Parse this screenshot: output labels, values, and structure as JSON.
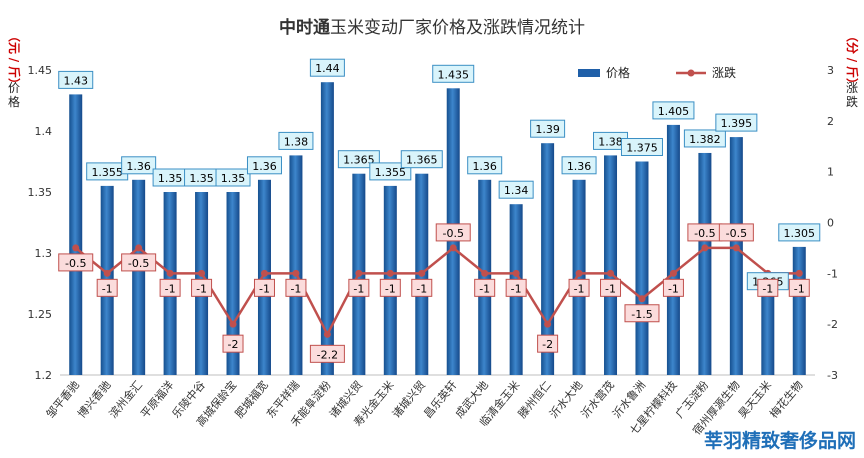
{
  "chart_data": {
    "type": "bar",
    "title_prefix": "中时通",
    "title_rest": "玉米变动厂家价格及涨跌情况统计",
    "ylabel_left": "价格",
    "ylabel_left_unit": "（元/斤）",
    "ylabel_right": "涨跌",
    "ylabel_right_unit": "（分/斤）",
    "ylim_left": [
      1.2,
      1.45
    ],
    "ylim_right": [
      -3,
      3
    ],
    "yticks_left": [
      "1.2",
      "1.25",
      "1.3",
      "1.35",
      "1.4",
      "1.45"
    ],
    "yticks_right": [
      "-3",
      "-2",
      "-1",
      "0",
      "1",
      "2",
      "3"
    ],
    "grid": false,
    "legend_position": "top-right",
    "categories": [
      "邹平香驰",
      "博兴香驰",
      "滨州金汇",
      "平原福洋",
      "乐陵中谷",
      "高城保龄宝",
      "肥城福宽",
      "东平祥瑞",
      "禾能阜淀粉",
      "诸城兴贸",
      "寿光金玉米",
      "诸城兴贸",
      "昌乐英轩",
      "成武大地",
      "临清金玉米",
      "滕州恒仁",
      "沂水大地",
      "沂水营茂",
      "沂水鲁洲",
      "七星柠檬科技",
      "广玉淀粉",
      "宿州厚源生物",
      "昊天玉米",
      "梅花生物"
    ],
    "series": [
      {
        "name": "价格",
        "type": "bar",
        "values": [
          1.43,
          1.355,
          1.36,
          1.35,
          1.35,
          1.35,
          1.36,
          1.38,
          1.44,
          1.365,
          1.355,
          1.365,
          1.435,
          1.36,
          1.34,
          1.39,
          1.36,
          1.38,
          1.375,
          1.405,
          1.382,
          1.395,
          1.265,
          1.305
        ],
        "labels": [
          "1.43",
          "1.355",
          "1.36",
          "1.35",
          "1.35",
          "1.35",
          "1.36",
          "1.38",
          "1.44",
          "1.365",
          "1.355",
          "1.365",
          "1.435",
          "1.36",
          "1.34",
          "1.39",
          "1.36",
          "1.38",
          "1.375",
          "1.405",
          "1.382",
          "1.395",
          "1.265",
          "1.305"
        ]
      },
      {
        "name": "涨跌",
        "type": "line",
        "values": [
          -0.5,
          -1,
          -0.5,
          -1,
          -1,
          -2,
          -1,
          -1,
          -2.2,
          -1,
          -1,
          -1,
          -0.5,
          -1,
          -1,
          -2,
          -1,
          -1,
          -1.5,
          -1,
          -0.5,
          -0.5,
          -1,
          -1
        ],
        "labels": [
          "-0.5",
          "-1",
          "-0.5",
          "-1",
          "-1",
          "-2",
          "-1",
          "-1",
          "-2.2",
          "-1",
          "-1",
          "-1",
          "-0.5",
          "-1",
          "-1",
          "-2",
          "-1",
          "-1",
          "-1.5",
          "-1",
          "-0.5",
          "-0.5",
          "-1",
          "-1"
        ]
      }
    ],
    "colors": {
      "bar": "#1f5fa8",
      "bar_light": "#4f8fd0",
      "line": "#c0504d",
      "bar_label_fill": "#d9f4fb",
      "bar_label_stroke": "#3b8fc4",
      "line_label_fill": "#fbdcdc",
      "line_label_stroke": "#c0504d"
    }
  },
  "watermark": "莘羽精致奢侈品网"
}
